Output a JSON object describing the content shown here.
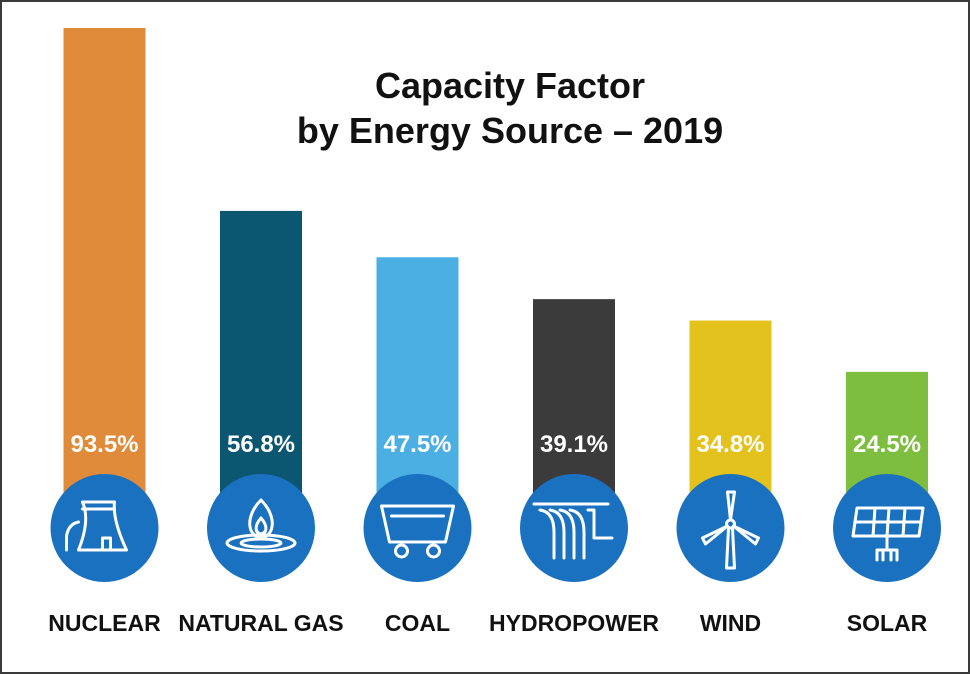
{
  "chart_data": {
    "type": "bar",
    "title": [
      "Capacity Factor",
      "by Energy Source – 2019"
    ],
    "categories": [
      "NUCLEAR",
      "NATURAL GAS",
      "COAL",
      "HYDROPOWER",
      "WIND",
      "SOLAR"
    ],
    "values": [
      93.5,
      56.8,
      47.5,
      39.1,
      34.8,
      24.5
    ],
    "value_labels": [
      "93.5%",
      "56.8%",
      "47.5%",
      "39.1%",
      "34.8%",
      "24.5%"
    ],
    "bar_colors": [
      "#E08B3A",
      "#0B5671",
      "#4BAFE3",
      "#3B3B3B",
      "#E4C21E",
      "#7DBE3E"
    ],
    "icons": [
      "nuclear-plant-icon",
      "gas-flame-icon",
      "coal-cart-icon",
      "hydropower-dam-icon",
      "wind-turbine-icon",
      "solar-panel-icon"
    ],
    "icon_circle_color": "#1A71BF",
    "ylim": [
      0,
      100
    ],
    "unit": "%",
    "xlabel": "",
    "ylabel": "",
    "grid": false
  }
}
